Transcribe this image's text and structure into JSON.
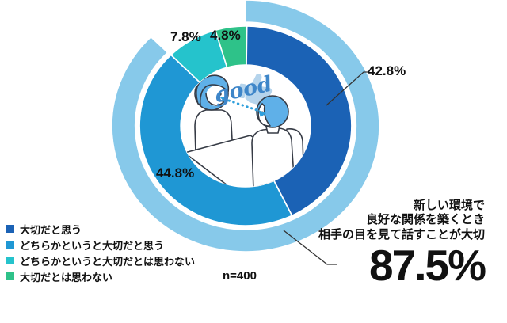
{
  "chart_data": {
    "type": "donut",
    "unit": "%",
    "sample_label": "n=400",
    "start_angle_deg": 0,
    "direction": "clockwise",
    "segments": [
      {
        "label": "大切だと思う",
        "value": 42.8,
        "pct_label": "42.8%",
        "color": "#1B62B5"
      },
      {
        "label": "どちらかというと大切だと思う",
        "value": 44.8,
        "pct_label": "44.8%",
        "color": "#1F97D4"
      },
      {
        "label": "どちらかというと大切だとは思わない",
        "value": 7.8,
        "pct_label": "7.8%",
        "color": "#25C3CC"
      },
      {
        "label": "大切だとは思わない",
        "value": 4.8,
        "pct_label": "4.8%",
        "color": "#2EC289"
      }
    ],
    "summary_ring": {
      "value": 87.5,
      "label": "87.5%",
      "color": "#87C9EA"
    }
  },
  "annotation": {
    "lines": [
      "新しい環境で",
      "良好な関係を築くとき",
      "相手の目を見て話すことが大切"
    ],
    "value_label": "87.5%"
  },
  "illustration": {
    "caption": "good"
  }
}
